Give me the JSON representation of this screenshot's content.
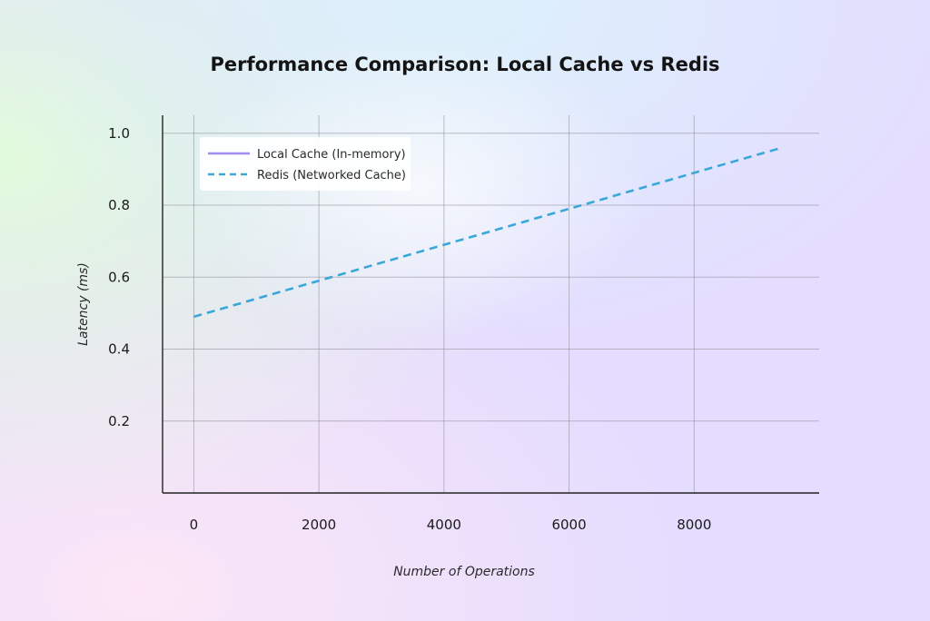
{
  "chart_data": {
    "type": "line",
    "title": "Performance Comparison: Local Cache vs Redis",
    "xlabel": "Number of Operations",
    "ylabel": "Latency (ms)",
    "xlim": [
      -500,
      10000
    ],
    "ylim": [
      0,
      1.05
    ],
    "x_ticks": [
      0,
      2000,
      4000,
      6000,
      8000
    ],
    "x_tick_labels": [
      "0",
      "2000",
      "4000",
      "6000",
      "8000"
    ],
    "y_ticks": [
      0.2,
      0.4,
      0.6,
      0.8,
      1.0
    ],
    "y_tick_labels": [
      "0.2",
      "0.4",
      "0.6",
      "0.8",
      "1.0"
    ],
    "grid": true,
    "legend_position": "top-left",
    "series": [
      {
        "name": "Local Cache (In-memory)",
        "color": "#a08cf0",
        "line_style": "solid",
        "x": [],
        "y": []
      },
      {
        "name": "Redis (Networked Cache)",
        "color": "#3aa7d9",
        "line_style": "dashed",
        "x": [
          0,
          2000,
          4000,
          6000,
          8000,
          9400
        ],
        "y": [
          0.49,
          0.59,
          0.69,
          0.79,
          0.89,
          0.96
        ]
      }
    ]
  }
}
